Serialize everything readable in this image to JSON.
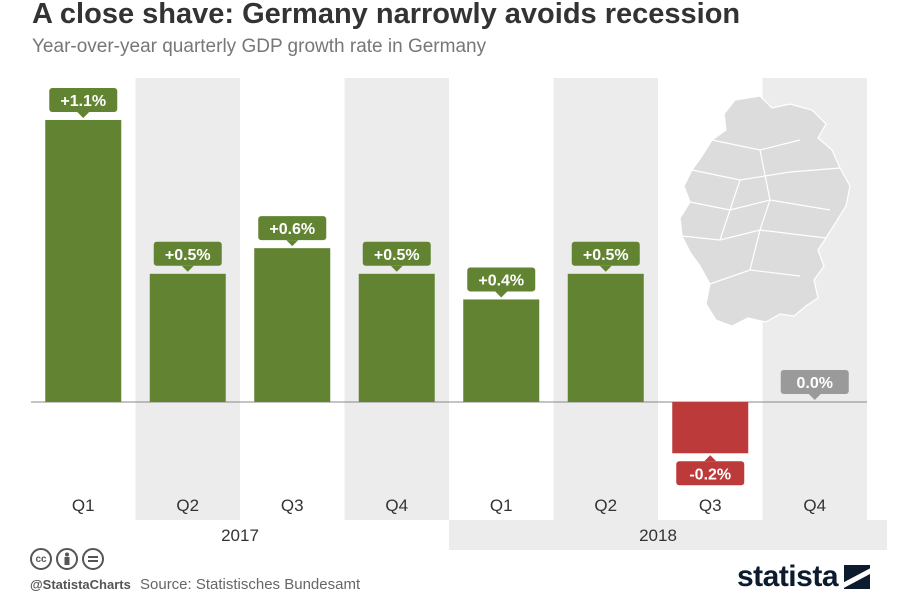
{
  "title": "A close shave: Germany narrowly avoids recession",
  "subtitle": "Year-over-year quarterly GDP growth rate in Germany",
  "footer": {
    "handle": "@StatistaCharts",
    "source": "Source: Statistisches Bundesamt",
    "brand": "statista",
    "cc_icons": [
      "cc",
      "by",
      "nd"
    ]
  },
  "colors": {
    "positive": "#628432",
    "negative": "#bc3a3a",
    "zero": "#9a9a9a",
    "band": "#ececec"
  },
  "chart_data": {
    "type": "bar",
    "categories": [
      "Q1",
      "Q2",
      "Q3",
      "Q4",
      "Q1",
      "Q2",
      "Q3",
      "Q4"
    ],
    "groups": [
      {
        "label": "2017",
        "categories": [
          "Q1",
          "Q2",
          "Q3",
          "Q4"
        ]
      },
      {
        "label": "2018",
        "categories": [
          "Q1",
          "Q2",
          "Q3",
          "Q4"
        ]
      }
    ],
    "values": [
      1.1,
      0.5,
      0.6,
      0.5,
      0.4,
      0.5,
      -0.2,
      0.0
    ],
    "data_labels": [
      "+1.1%",
      "+0.5%",
      "+0.6%",
      "+0.5%",
      "+0.4%",
      "+0.5%",
      "-0.2%",
      "0.0%"
    ],
    "ylim": [
      -0.2,
      1.1
    ],
    "alternating_bands": true,
    "inset": "map of Germany"
  }
}
